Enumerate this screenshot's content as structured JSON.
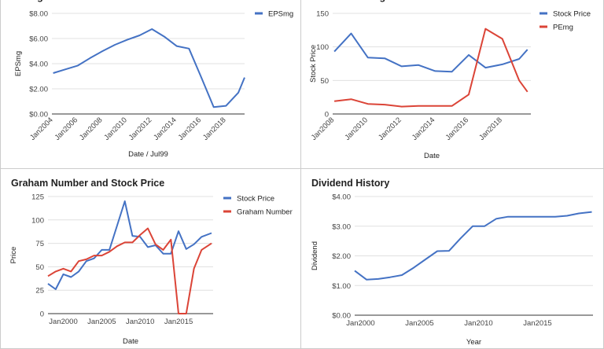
{
  "chart_data": [
    {
      "type": "line",
      "title": "EPSmg",
      "xlabel": "Date / Jul99",
      "ylabel": "EPSmg",
      "x_ticks": [
        "Jan2004",
        "Jan2006",
        "Jan2008",
        "Jan2010",
        "Jan2012",
        "Jan2014",
        "Jan2016",
        "Jan2018"
      ],
      "y_ticks": [
        "$0.00",
        "$2.00",
        "$4.00",
        "$6.00",
        "$8.00"
      ],
      "xlim": [
        2003.9,
        2019.5
      ],
      "ylim": [
        0,
        8
      ],
      "legend_position": "right",
      "series": [
        {
          "name": "EPSmg",
          "color": "#4472c4",
          "x": [
            2004,
            2005,
            2006,
            2007,
            2008,
            2009,
            2010,
            2011,
            2012,
            2013,
            2014,
            2015,
            2016,
            2017,
            2018,
            2019,
            2019.5
          ],
          "y": [
            3.25,
            3.55,
            3.85,
            4.45,
            5.0,
            5.5,
            5.9,
            6.25,
            6.75,
            6.15,
            5.4,
            5.2,
            2.9,
            0.55,
            0.65,
            1.7,
            2.9
          ]
        }
      ]
    },
    {
      "type": "line",
      "title": "Price and PEmg",
      "xlabel": "Date",
      "ylabel": "Stock Price",
      "x_ticks": [
        "Jan2008",
        "Jan2010",
        "Jan2012",
        "Jan2014",
        "Jan2016",
        "Jan2018"
      ],
      "y_ticks": [
        "0",
        "50",
        "100",
        "150"
      ],
      "xlim": [
        2007.9,
        2019.7
      ],
      "ylim": [
        0,
        150
      ],
      "legend_position": "right",
      "series": [
        {
          "name": "Stock Price",
          "color": "#4472c4",
          "x": [
            2008,
            2009,
            2010,
            2011,
            2012,
            2013,
            2014,
            2015,
            2016,
            2017,
            2018,
            2019,
            2019.5
          ],
          "y": [
            93,
            120,
            84,
            83,
            71,
            73,
            64,
            63,
            88,
            69,
            74,
            82,
            96
          ]
        },
        {
          "name": "PEmg",
          "color": "#db4437",
          "x": [
            2008,
            2009,
            2010,
            2011,
            2012,
            2013,
            2014,
            2015,
            2016,
            2017,
            2018,
            2019,
            2019.5
          ],
          "y": [
            19,
            22,
            15,
            14,
            11,
            12,
            12,
            12,
            29,
            127,
            112,
            50,
            33
          ]
        }
      ]
    },
    {
      "type": "line",
      "title": "Graham Number and Stock Price",
      "xlabel": "Date",
      "ylabel": "Price",
      "x_ticks": [
        "Jan2000",
        "Jan2005",
        "Jan2010",
        "Jan2015"
      ],
      "y_ticks": [
        "0",
        "25",
        "50",
        "75",
        "100",
        "125"
      ],
      "xlim": [
        1998,
        2019.5
      ],
      "ylim": [
        0,
        125
      ],
      "legend_position": "right",
      "series": [
        {
          "name": "Stock Price",
          "color": "#4472c4",
          "x": [
            1998,
            1999,
            2000,
            2001,
            2002,
            2003,
            2004,
            2005,
            2006,
            2007,
            2008,
            2009,
            2010,
            2011,
            2012,
            2013,
            2014,
            2015,
            2016,
            2017,
            2018,
            2019.3
          ],
          "y": [
            32,
            26,
            42,
            39,
            45,
            56,
            59,
            68,
            68,
            94,
            120,
            83,
            82,
            71,
            73,
            64,
            64,
            88,
            69,
            74,
            82,
            86
          ]
        },
        {
          "name": "Graham Number",
          "color": "#db4437",
          "x": [
            1998,
            1999,
            2000,
            2001,
            2002,
            2003,
            2004,
            2005,
            2006,
            2007,
            2008,
            2009,
            2010,
            2011,
            2012,
            2013,
            2014,
            2015,
            2016,
            2017,
            2018,
            2019.3
          ],
          "y": [
            40,
            45,
            48,
            45,
            56,
            58,
            62,
            62,
            66,
            72,
            76,
            76,
            84,
            91,
            74,
            68,
            79,
            0,
            0,
            48,
            68,
            75
          ]
        }
      ]
    },
    {
      "type": "line",
      "title": "Dividend History",
      "xlabel": "Year",
      "ylabel": "Dividend",
      "x_ticks": [
        "Jan2000",
        "Jan2005",
        "Jan2010",
        "Jan2015"
      ],
      "y_ticks": [
        "$0.00",
        "$1.00",
        "$2.00",
        "$3.00",
        "$4.00"
      ],
      "xlim": [
        1999.5,
        2019.7
      ],
      "ylim": [
        0,
        4
      ],
      "legend_position": "none",
      "series": [
        {
          "name": "Dividend",
          "color": "#4472c4",
          "x": [
            1999.5,
            2000.5,
            2001.5,
            2002.5,
            2003.5,
            2004.5,
            2005.5,
            2006.5,
            2007.5,
            2008.5,
            2009.5,
            2010.5,
            2011.5,
            2012.5,
            2013.5,
            2014.5,
            2015.5,
            2016.5,
            2017.5,
            2018.5,
            2019.6
          ],
          "y": [
            1.5,
            1.2,
            1.22,
            1.28,
            1.35,
            1.6,
            1.88,
            2.16,
            2.17,
            2.6,
            3.0,
            3.0,
            3.25,
            3.32,
            3.32,
            3.32,
            3.32,
            3.32,
            3.35,
            3.43,
            3.48
          ]
        }
      ]
    }
  ]
}
